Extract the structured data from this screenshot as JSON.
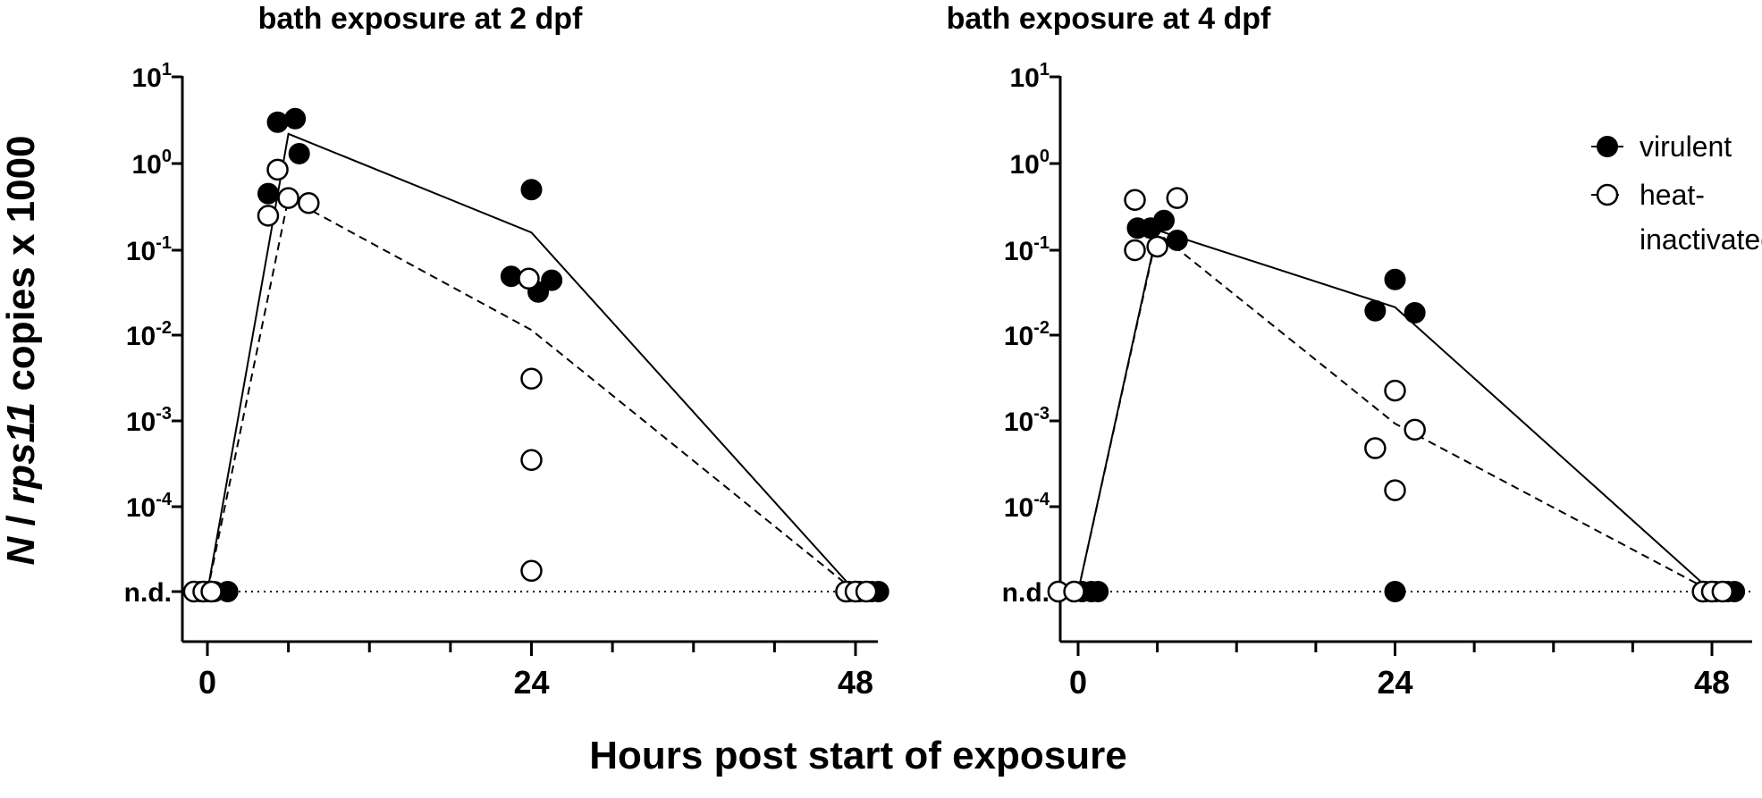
{
  "figure": {
    "ylabel_parts": [
      {
        "text": "N",
        "italic": true
      },
      {
        "text": " / ",
        "italic": false
      },
      {
        "text": "rps11",
        "italic": true
      },
      {
        "text": " copies x 1000",
        "italic": false
      }
    ],
    "xlabel": "Hours post start of exposure"
  },
  "y_ticks": [
    {
      "base": "10",
      "exp": "1",
      "value": 1
    },
    {
      "base": "10",
      "exp": "0",
      "value": 0
    },
    {
      "base": "10",
      "exp": "-1",
      "value": -1
    },
    {
      "base": "10",
      "exp": "-2",
      "value": -2
    },
    {
      "base": "10",
      "exp": "-3",
      "value": -3
    },
    {
      "base": "10",
      "exp": "-4",
      "value": -4
    }
  ],
  "nd_label": "n.d.",
  "x_ticks": [
    "0",
    "24",
    "48"
  ],
  "legend": {
    "virulent": "virulent",
    "heat_line1": "heat-",
    "heat_line2": "inactivated"
  },
  "colors": {
    "ink": "#000000",
    "background": "#ffffff"
  },
  "chart_data": [
    {
      "type": "scatter",
      "title": "bath exposure at 2 dpf",
      "xlabel": "Hours post start of exposure",
      "ylabel": "N / rps11 copies x 1000",
      "y_scale": "log10",
      "ylim": [
        "n.d.",
        10
      ],
      "xlim": [
        -2,
        50
      ],
      "x_ticks": [
        0,
        24,
        48
      ],
      "legend": false,
      "series": [
        {
          "name": "virulent",
          "marker": "filled-circle",
          "line": "solid",
          "points": [
            {
              "x": -0.5,
              "y": "n.d."
            },
            {
              "x": 0,
              "y": "n.d."
            },
            {
              "x": 0.5,
              "y": "n.d."
            },
            {
              "x": 1.5,
              "y": "n.d."
            },
            {
              "x": 4.5,
              "y": 0.45
            },
            {
              "x": 5.2,
              "y": 3.0
            },
            {
              "x": 6.5,
              "y": 3.3
            },
            {
              "x": 6.8,
              "y": 1.3
            },
            {
              "x": 22.5,
              "y": 0.05
            },
            {
              "x": 24.0,
              "y": 0.5
            },
            {
              "x": 24.5,
              "y": 0.033
            },
            {
              "x": 25.5,
              "y": 0.045
            },
            {
              "x": 47.5,
              "y": "n.d."
            },
            {
              "x": 48.3,
              "y": "n.d."
            },
            {
              "x": 49.2,
              "y": "n.d."
            },
            {
              "x": 49.7,
              "y": "n.d."
            }
          ],
          "mean_line": [
            {
              "x": 0,
              "y": "n.d."
            },
            {
              "x": 6,
              "y": 2.2
            },
            {
              "x": 24,
              "y": 0.16
            },
            {
              "x": 48,
              "y": "n.d."
            }
          ]
        },
        {
          "name": "heat-inactivated",
          "marker": "open-circle",
          "line": "dashed",
          "points": [
            {
              "x": -1.0,
              "y": "n.d."
            },
            {
              "x": -0.3,
              "y": "n.d."
            },
            {
              "x": 0.3,
              "y": "n.d."
            },
            {
              "x": 4.5,
              "y": 0.25
            },
            {
              "x": 5.2,
              "y": 0.85
            },
            {
              "x": 6.0,
              "y": 0.4
            },
            {
              "x": 7.5,
              "y": 0.35
            },
            {
              "x": 23.8,
              "y": 0.047
            },
            {
              "x": 24.0,
              "y": 0.0033
            },
            {
              "x": 24.0,
              "y": 0.00038
            },
            {
              "x": 24.0,
              "y": 2e-05
            },
            {
              "x": 47.3,
              "y": "n.d."
            },
            {
              "x": 48.0,
              "y": "n.d."
            },
            {
              "x": 48.8,
              "y": "n.d."
            }
          ],
          "mean_line": [
            {
              "x": 0,
              "y": "n.d."
            },
            {
              "x": 6,
              "y": 0.4
            },
            {
              "x": 24,
              "y": 0.012
            },
            {
              "x": 48,
              "y": "n.d."
            }
          ]
        }
      ]
    },
    {
      "type": "scatter",
      "title": "bath exposure at 4 dpf",
      "xlabel": "Hours post start of exposure",
      "ylabel": "N / rps11 copies x 1000",
      "y_scale": "log10",
      "ylim": [
        "n.d.",
        10
      ],
      "xlim": [
        -2,
        50
      ],
      "x_ticks": [
        0,
        24,
        48
      ],
      "legend": "top-right",
      "series": [
        {
          "name": "virulent",
          "marker": "filled-circle",
          "line": "solid",
          "points": [
            {
              "x": -0.3,
              "y": "n.d."
            },
            {
              "x": 0.3,
              "y": "n.d."
            },
            {
              "x": 1.0,
              "y": "n.d."
            },
            {
              "x": 1.5,
              "y": "n.d."
            },
            {
              "x": 4.5,
              "y": 0.18
            },
            {
              "x": 5.5,
              "y": 0.18
            },
            {
              "x": 6.5,
              "y": 0.22
            },
            {
              "x": 7.5,
              "y": 0.13
            },
            {
              "x": 22.5,
              "y": 0.02
            },
            {
              "x": 24.0,
              "y": 0.046
            },
            {
              "x": 25.5,
              "y": 0.019
            },
            {
              "x": 24.0,
              "y": "n.d."
            },
            {
              "x": 47.5,
              "y": "n.d."
            },
            {
              "x": 48.3,
              "y": "n.d."
            },
            {
              "x": 49.2,
              "y": "n.d."
            },
            {
              "x": 49.7,
              "y": "n.d."
            }
          ],
          "mean_line": [
            {
              "x": 0,
              "y": "n.d."
            },
            {
              "x": 6,
              "y": 0.17
            },
            {
              "x": 24,
              "y": 0.022
            },
            {
              "x": 48,
              "y": "n.d."
            }
          ]
        },
        {
          "name": "heat-inactivated",
          "marker": "open-circle",
          "line": "dashed",
          "points": [
            {
              "x": -1.5,
              "y": "n.d."
            },
            {
              "x": -0.3,
              "y": "n.d."
            },
            {
              "x": 4.3,
              "y": 0.38
            },
            {
              "x": 4.3,
              "y": 0.1
            },
            {
              "x": 6.0,
              "y": 0.11
            },
            {
              "x": 7.5,
              "y": 0.4
            },
            {
              "x": 22.5,
              "y": 0.00052
            },
            {
              "x": 24.0,
              "y": 0.0024
            },
            {
              "x": 24.0,
              "y": 0.00017
            },
            {
              "x": 25.5,
              "y": 0.00085
            },
            {
              "x": 47.3,
              "y": "n.d."
            },
            {
              "x": 48.0,
              "y": "n.d."
            },
            {
              "x": 48.8,
              "y": "n.d."
            }
          ],
          "mean_line": [
            {
              "x": 0,
              "y": "n.d."
            },
            {
              "x": 6,
              "y": 0.16
            },
            {
              "x": 24,
              "y": 0.001
            },
            {
              "x": 48,
              "y": "n.d."
            }
          ]
        }
      ]
    }
  ]
}
